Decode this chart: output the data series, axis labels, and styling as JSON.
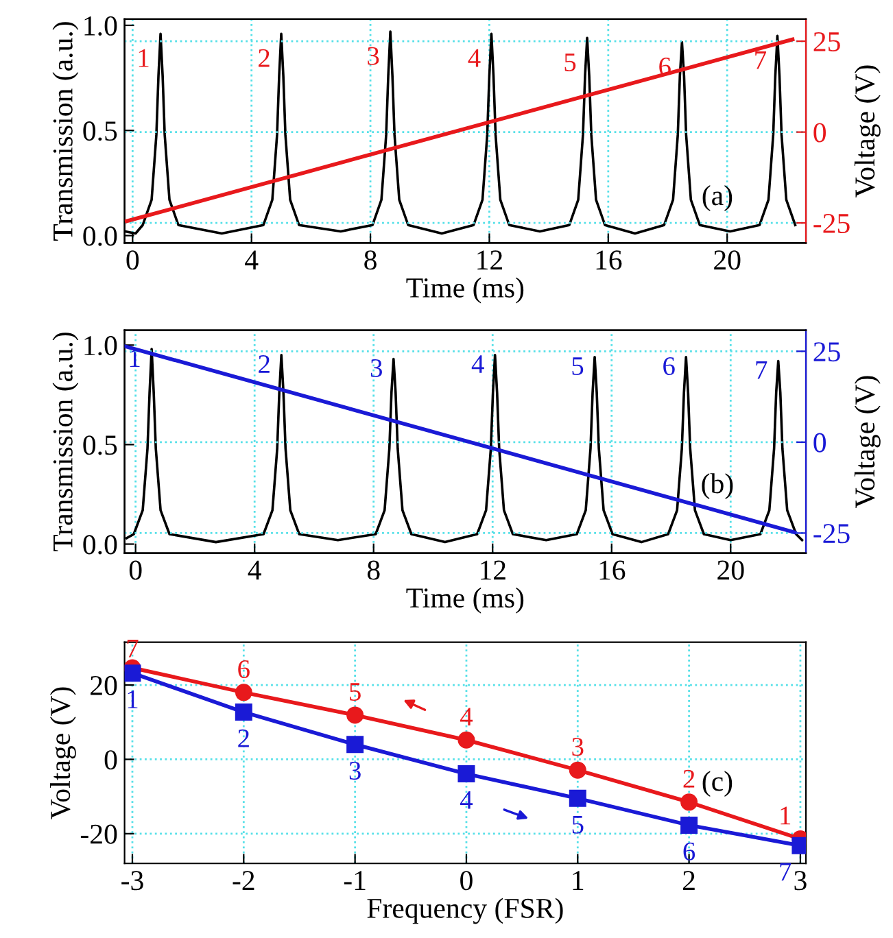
{
  "chart_data": [
    {
      "type": "line",
      "xlabel": "Time (ms)",
      "ylabel": "Transmission (a.u.)",
      "y2label": "Voltage (V)",
      "xlim": [
        -0.27,
        22.65
      ],
      "xticks": [
        0,
        4,
        8,
        12,
        16,
        20
      ],
      "ylim": [
        -0.035,
        1.03
      ],
      "yticks": [
        {
          "value": 0,
          "label": "0.0"
        },
        {
          "value": 0.5,
          "label": "0.5"
        },
        {
          "value": 1,
          "label": "1.0"
        }
      ],
      "y2lim": [
        -30.5,
        31.1
      ],
      "y2ticks": [
        -25,
        0,
        25
      ],
      "grid": true,
      "series": [
        {
          "color": "#000000",
          "x": [
            -0.25,
            0.1,
            0.34,
            0.64,
            0.8,
            0.87,
            0.94,
            1.01,
            1.08,
            1.24,
            1.54,
            3.0,
            4.4,
            4.7,
            4.86,
            4.93,
            5.0,
            5.07,
            5.14,
            5.3,
            5.6,
            7.0,
            8.07,
            8.37,
            8.53,
            8.6,
            8.67,
            8.74,
            8.81,
            8.97,
            9.27,
            10.4,
            11.47,
            11.77,
            11.93,
            12.0,
            12.07,
            12.14,
            12.21,
            12.37,
            12.67,
            13.7,
            14.69,
            14.99,
            15.15,
            15.22,
            15.29,
            15.36,
            15.43,
            15.59,
            15.89,
            16.9,
            17.88,
            18.18,
            18.34,
            18.41,
            18.48,
            18.55,
            18.62,
            18.78,
            19.08,
            20.1,
            21.09,
            21.39,
            21.55,
            21.62,
            21.69,
            21.76,
            21.83,
            21.99,
            22.29
          ],
          "values": [
            0.02,
            0.01,
            0.05,
            0.17,
            0.48,
            0.76,
            0.96,
            0.76,
            0.48,
            0.17,
            0.05,
            0.01,
            0.05,
            0.17,
            0.48,
            0.76,
            0.96,
            0.76,
            0.48,
            0.17,
            0.05,
            0.02,
            0.05,
            0.17,
            0.48,
            0.76,
            0.97,
            0.76,
            0.48,
            0.17,
            0.05,
            0.01,
            0.05,
            0.17,
            0.48,
            0.76,
            0.96,
            0.76,
            0.48,
            0.17,
            0.05,
            0.02,
            0.05,
            0.17,
            0.48,
            0.76,
            0.94,
            0.76,
            0.48,
            0.17,
            0.05,
            0.01,
            0.05,
            0.17,
            0.48,
            0.76,
            0.92,
            0.76,
            0.48,
            0.17,
            0.05,
            0.02,
            0.05,
            0.17,
            0.48,
            0.76,
            0.95,
            0.76,
            0.48,
            0.17,
            0.05
          ]
        },
        {
          "color": "#e8191c",
          "axis": "y2",
          "x": [
            -0.2,
            22.2
          ],
          "values": [
            -24.5,
            25.5
          ]
        }
      ],
      "annotations": [
        {
          "text": "1",
          "x": 0.94,
          "y": 0.96
        },
        {
          "text": "2",
          "x": 5.0,
          "y": 0.96
        },
        {
          "text": "3",
          "x": 8.67,
          "y": 0.97
        },
        {
          "text": "4",
          "x": 12.07,
          "y": 0.96
        },
        {
          "text": "5",
          "x": 15.29,
          "y": 0.94
        },
        {
          "text": "6",
          "x": 18.48,
          "y": 0.92
        },
        {
          "text": "7",
          "x": 21.69,
          "y": 0.95
        },
        "(a)"
      ]
    },
    {
      "type": "line",
      "xlabel": "Time (ms)",
      "ylabel": "Transmission (a.u.)",
      "y2label": "Voltage (V)",
      "xlim": [
        -0.37,
        22.53
      ],
      "xticks": [
        0,
        4,
        8,
        12,
        16,
        20
      ],
      "ylim": [
        -0.045,
        1.075
      ],
      "yticks": [
        {
          "value": 0,
          "label": "0.0"
        },
        {
          "value": 0.5,
          "label": "0.5"
        },
        {
          "value": 1,
          "label": "1.0"
        }
      ],
      "y2lim": [
        -30.5,
        30.8
      ],
      "y2ticks": [
        -25,
        0,
        25
      ],
      "grid": true,
      "series": [
        {
          "color": "#000000",
          "x": [
            -0.3,
            -0.06,
            0.24,
            0.4,
            0.47,
            0.54,
            0.61,
            0.68,
            0.84,
            1.14,
            2.7,
            4.3,
            4.6,
            4.76,
            4.83,
            4.9,
            4.97,
            5.04,
            5.2,
            5.5,
            6.8,
            8.07,
            8.37,
            8.53,
            8.6,
            8.67,
            8.74,
            8.81,
            8.97,
            9.27,
            10.4,
            11.48,
            11.78,
            11.94,
            12.01,
            12.08,
            12.15,
            12.22,
            12.38,
            12.68,
            13.8,
            14.83,
            15.13,
            15.29,
            15.36,
            15.43,
            15.5,
            15.57,
            15.73,
            16.03,
            17.0,
            17.9,
            18.2,
            18.36,
            18.43,
            18.5,
            18.57,
            18.64,
            18.8,
            19.1,
            20.0,
            21.0,
            21.3,
            21.46,
            21.53,
            21.6,
            21.67,
            21.74,
            21.9,
            22.2,
            22.4
          ],
          "values": [
            0.03,
            0.05,
            0.17,
            0.48,
            0.76,
            0.98,
            0.76,
            0.48,
            0.17,
            0.05,
            0.01,
            0.05,
            0.17,
            0.48,
            0.76,
            0.95,
            0.76,
            0.48,
            0.17,
            0.05,
            0.02,
            0.05,
            0.17,
            0.48,
            0.76,
            0.93,
            0.76,
            0.48,
            0.17,
            0.05,
            0.01,
            0.05,
            0.17,
            0.48,
            0.76,
            0.95,
            0.76,
            0.48,
            0.17,
            0.05,
            0.02,
            0.05,
            0.17,
            0.48,
            0.76,
            0.94,
            0.76,
            0.48,
            0.17,
            0.05,
            0.01,
            0.05,
            0.17,
            0.48,
            0.76,
            0.94,
            0.76,
            0.48,
            0.17,
            0.05,
            0.02,
            0.05,
            0.17,
            0.48,
            0.76,
            0.92,
            0.76,
            0.48,
            0.17,
            0.05,
            0.02
          ]
        },
        {
          "color": "#1a1ad6",
          "axis": "y2",
          "x": [
            -0.37,
            22.15
          ],
          "values": [
            26.4,
            -24.8
          ]
        }
      ],
      "annotations": [
        {
          "text": "1",
          "x": 0.54,
          "y": 0.98
        },
        {
          "text": "2",
          "x": 4.9,
          "y": 0.95
        },
        {
          "text": "3",
          "x": 8.67,
          "y": 0.93
        },
        {
          "text": "4",
          "x": 12.08,
          "y": 0.95
        },
        {
          "text": "5",
          "x": 15.43,
          "y": 0.94
        },
        {
          "text": "6",
          "x": 18.5,
          "y": 0.94
        },
        {
          "text": "7",
          "x": 21.6,
          "y": 0.92
        },
        "(b)"
      ]
    },
    {
      "type": "line",
      "xlabel": "Frequency (FSR)",
      "ylabel": "Voltage (V)",
      "x": [
        -3,
        -2,
        -1,
        0,
        1,
        2,
        3
      ],
      "xlim": [
        -3.07,
        3.05
      ],
      "xticks": [
        -3,
        -2,
        -1,
        0,
        1,
        2,
        3
      ],
      "ylim": [
        -28,
        31.5
      ],
      "yticks": [
        -20,
        0,
        20
      ],
      "grid": true,
      "series": [
        {
          "color": "#e8191c",
          "marker": "circle",
          "values": [
            24.6,
            18.0,
            11.9,
            5.2,
            -2.9,
            -11.5,
            -21.4
          ]
        },
        {
          "color": "#1a1ad6",
          "marker": "square",
          "values": [
            23.2,
            12.7,
            4.0,
            -3.9,
            -10.5,
            -17.7,
            -23.2
          ]
        }
      ],
      "annotations": [
        {
          "text": "7",
          "x": -3,
          "y": 24.6
        },
        {
          "text": "6",
          "x": -2,
          "y": 18.0
        },
        {
          "text": "5",
          "x": -1,
          "y": 11.9
        },
        {
          "text": "4",
          "x": 0,
          "y": 5.2
        },
        {
          "text": "3",
          "x": 1,
          "y": -2.9
        },
        {
          "text": "2",
          "x": 2,
          "y": -11.5
        },
        {
          "text": "1",
          "x": 3,
          "y": -21.4
        },
        {
          "text": "1",
          "x": -3,
          "y": 23.2
        },
        {
          "text": "2",
          "x": -2,
          "y": 12.7
        },
        {
          "text": "3",
          "x": -1,
          "y": 4.0
        },
        {
          "text": "4",
          "x": 0,
          "y": -3.9
        },
        {
          "text": "5",
          "x": 1,
          "y": -10.5
        },
        {
          "text": "6",
          "x": 2,
          "y": -17.7
        },
        {
          "text": "7",
          "x": 3,
          "y": -23.2
        },
        "(c)"
      ]
    }
  ]
}
